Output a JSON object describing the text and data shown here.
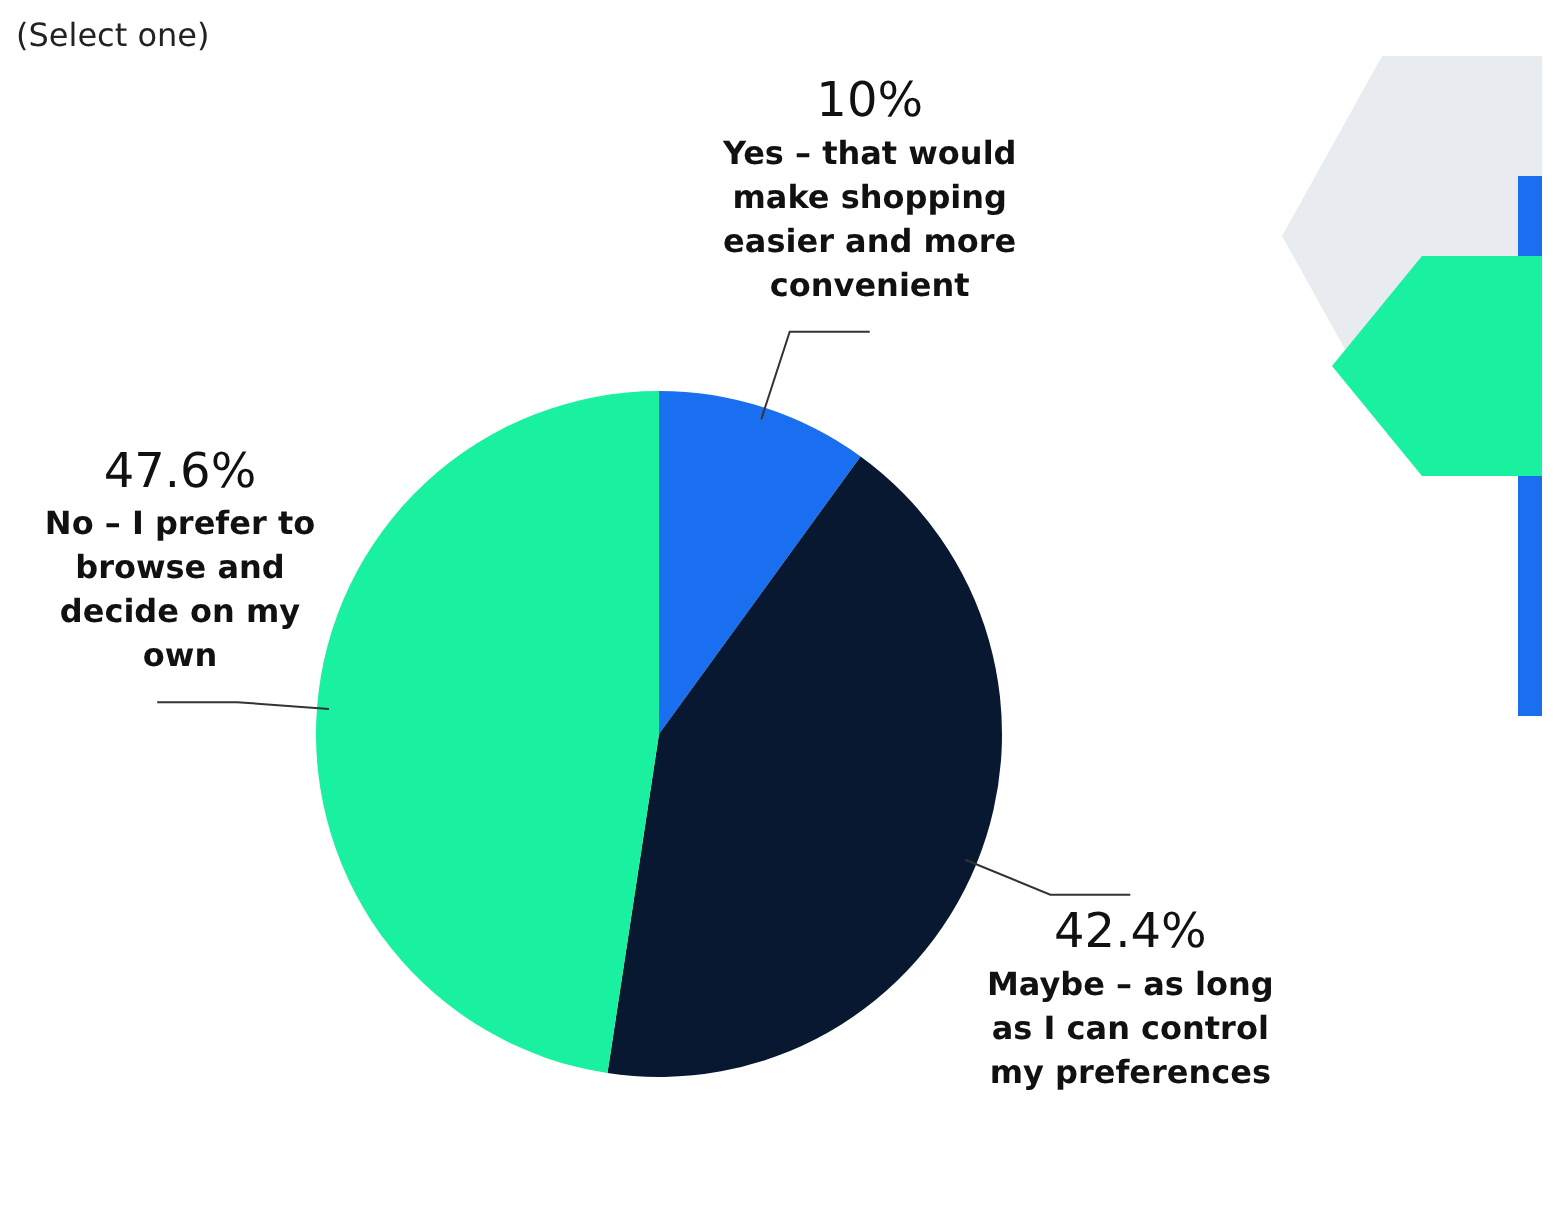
{
  "chart_data": {
    "type": "pie",
    "subtitle": "(Select one)",
    "categories": [
      "Yes – that would make shopping easier and more convenient",
      "Maybe – as long as I can control my preferences",
      "No – I prefer to browse and decide on my own"
    ],
    "values": [
      10,
      42.4,
      47.6
    ],
    "value_labels": [
      "10%",
      "42.4%",
      "47.6%"
    ],
    "colors": [
      "#1a6ef0",
      "#071830",
      "#19f0a0"
    ],
    "legend": false
  }
}
